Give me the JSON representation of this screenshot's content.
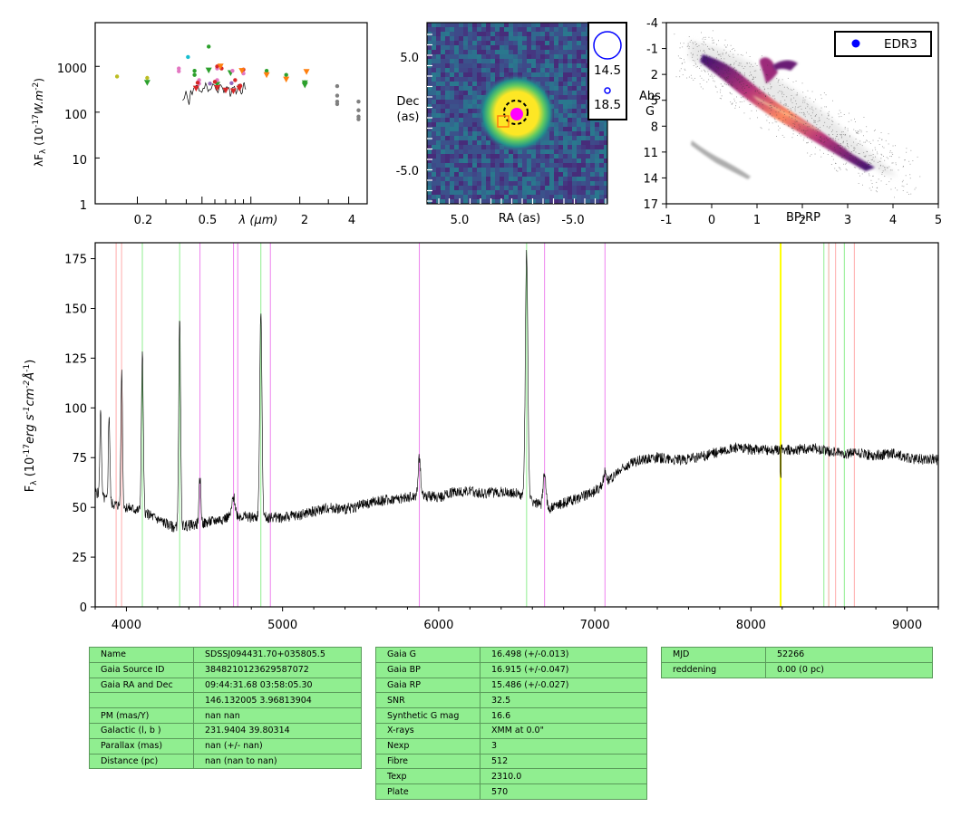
{
  "sed": {
    "ylabel": "λF_λ (10^-17 W.m^-2)",
    "xlabel": "λ (μm)",
    "ytick_labels": [
      "1000",
      "100",
      "10",
      "1"
    ],
    "xtick_labels": [
      "0.2",
      "0.5",
      "2",
      "4"
    ],
    "chart_data": {
      "type": "scatter",
      "xscale": "log",
      "yscale": "log",
      "xlim": [
        0.11,
        5.2
      ],
      "ylim": [
        1,
        9000
      ],
      "series": [
        {
          "color": "#bcbd22",
          "marker": "dot",
          "points": [
            [
              0.15,
              600
            ],
            [
              0.23,
              560
            ]
          ]
        },
        {
          "color": "#2ca02c",
          "marker": "tri-down",
          "points": [
            [
              0.23,
              440
            ],
            [
              0.55,
              820
            ],
            [
              0.62,
              400
            ],
            [
              0.75,
              720
            ],
            [
              2.15,
              430
            ],
            [
              2.15,
              390
            ]
          ]
        },
        {
          "color": "#2ca02c",
          "marker": "dot",
          "points": [
            [
              0.55,
              2700
            ],
            [
              0.45,
              800
            ],
            [
              0.45,
              650
            ],
            [
              1.25,
              800
            ],
            [
              1.65,
              650
            ],
            [
              2.15,
              450
            ]
          ]
        },
        {
          "color": "#17becf",
          "marker": "dot",
          "points": [
            [
              0.41,
              1600
            ]
          ]
        },
        {
          "color": "#e377c2",
          "marker": "dot",
          "points": [
            [
              0.36,
              900
            ],
            [
              0.36,
              780
            ],
            [
              0.48,
              500
            ],
            [
              0.48,
              420
            ],
            [
              0.62,
              900
            ],
            [
              0.62,
              500
            ],
            [
              0.77,
              800
            ],
            [
              0.9,
              700
            ]
          ]
        },
        {
          "color": "#d62728",
          "marker": "dot",
          "points": [
            [
              0.47,
              440
            ],
            [
              0.6,
              460
            ],
            [
              0.66,
              900
            ],
            [
              0.8,
              500
            ],
            [
              0.86,
              380
            ],
            [
              0.9,
              850
            ],
            [
              0.62,
              1000
            ]
          ]
        },
        {
          "color": "#d62728",
          "marker": "tri-down",
          "points": [
            [
              0.46,
              330
            ],
            [
              0.62,
              340
            ],
            [
              0.7,
              300
            ],
            [
              0.78,
              290
            ],
            [
              0.85,
              330
            ]
          ]
        },
        {
          "color": "#ff7f0e",
          "marker": "tri-down",
          "points": [
            [
              0.65,
              1000
            ],
            [
              0.88,
              800
            ],
            [
              1.25,
              650
            ],
            [
              1.65,
              520
            ],
            [
              2.2,
              760
            ]
          ]
        },
        {
          "color": "#9467bd",
          "marker": "dot",
          "points": [
            [
              0.56,
              420
            ],
            [
              0.76,
              430
            ]
          ]
        },
        {
          "color": "#7f7f7f",
          "marker": "dot",
          "points": [
            [
              3.4,
              370
            ],
            [
              3.4,
              230
            ],
            [
              3.4,
              170
            ],
            [
              3.4,
              150
            ],
            [
              4.6,
              170
            ],
            [
              4.6,
              110
            ],
            [
              4.6,
              80
            ],
            [
              4.6,
              70
            ]
          ]
        }
      ],
      "spectrum_color": "#000000"
    }
  },
  "image": {
    "ylabel_line1": "Dec",
    "ylabel_line2": "(as)",
    "xlabel": "RA (as)",
    "ytick_labels": [
      "5.0",
      "-5.0"
    ],
    "xtick_labels": [
      "5.0",
      "-5.0"
    ],
    "legend": [
      {
        "label": "14.5",
        "color": "#0000ff"
      },
      {
        "label": "18.5",
        "color": "#0000ff"
      }
    ],
    "chart_data": {
      "type": "heatmap",
      "colormap": "viridis",
      "xlim": [
        9.0,
        -9.0
      ],
      "ylim": [
        -9.0,
        9.0
      ],
      "source_center": [
        0.0,
        0.0
      ],
      "markers": [
        {
          "kind": "dashed-circle",
          "color": "#000000",
          "x": 0.1,
          "y": 0.2
        },
        {
          "kind": "dot",
          "color": "#ff00ff",
          "x": 0.0,
          "y": 0.1
        },
        {
          "kind": "square",
          "color": "#ff7f0e",
          "x": 1.3,
          "y": -0.6
        }
      ]
    }
  },
  "hrd": {
    "ylabel_line1": "Abs",
    "ylabel_line2": "G",
    "xlabel": "BP-RP",
    "ytick_labels": [
      "-4",
      "-1",
      "2",
      "5",
      "8",
      "11",
      "14",
      "17"
    ],
    "xtick_labels": [
      "-1",
      "0",
      "1",
      "2",
      "3",
      "4",
      "5"
    ],
    "legend_label": "EDR3",
    "legend_color": "#0000ff",
    "chart_data": {
      "type": "heatmap",
      "colormap": "inferno",
      "xlim": [
        -1,
        5
      ],
      "ylim": [
        17,
        -4
      ],
      "object_point": null
    }
  },
  "spectrum": {
    "ylabel": "F_λ (10^-17 erg s^-1 cm^-2 Å^-1)",
    "ytick_labels": [
      "175",
      "150",
      "125",
      "100",
      "75",
      "50",
      "25",
      "0"
    ],
    "xtick_labels": [
      "4000",
      "5000",
      "6000",
      "7000",
      "8000",
      "9000"
    ],
    "chart_data": {
      "type": "line",
      "xlim": [
        3800,
        9200
      ],
      "ylim": [
        0,
        183
      ],
      "xlabel": "",
      "ylabel": "F_λ",
      "continuum_points": [
        [
          3800,
          58
        ],
        [
          3850,
          55
        ],
        [
          3900,
          52
        ],
        [
          4000,
          50
        ],
        [
          4100,
          48
        ],
        [
          4200,
          44
        ],
        [
          4300,
          40
        ],
        [
          4400,
          41
        ],
        [
          4500,
          42
        ],
        [
          4600,
          44
        ],
        [
          4700,
          46
        ],
        [
          4800,
          45
        ],
        [
          4900,
          45
        ],
        [
          5000,
          45
        ],
        [
          5100,
          46
        ],
        [
          5200,
          48
        ],
        [
          5300,
          50
        ],
        [
          5400,
          49
        ],
        [
          5500,
          51
        ],
        [
          5600,
          53
        ],
        [
          5700,
          54
        ],
        [
          5800,
          55
        ],
        [
          5900,
          56
        ],
        [
          6000,
          55
        ],
        [
          6100,
          58
        ],
        [
          6200,
          58
        ],
        [
          6300,
          57
        ],
        [
          6400,
          58
        ],
        [
          6500,
          57
        ],
        [
          6600,
          53
        ],
        [
          6700,
          49
        ],
        [
          6800,
          52
        ],
        [
          6900,
          55
        ],
        [
          7000,
          58
        ],
        [
          7100,
          64
        ],
        [
          7200,
          71
        ],
        [
          7300,
          74
        ],
        [
          7400,
          75
        ],
        [
          7500,
          74
        ],
        [
          7600,
          74
        ],
        [
          7700,
          76
        ],
        [
          7800,
          78
        ],
        [
          7900,
          80
        ],
        [
          8000,
          79
        ],
        [
          8100,
          79
        ],
        [
          8200,
          79
        ],
        [
          8300,
          79
        ],
        [
          8400,
          80
        ],
        [
          8500,
          78
        ],
        [
          8600,
          77
        ],
        [
          8700,
          77
        ],
        [
          8800,
          76
        ],
        [
          8900,
          77
        ],
        [
          9000,
          75
        ],
        [
          9100,
          74
        ],
        [
          9200,
          74
        ]
      ],
      "emission_lines": [
        {
          "x": 3835,
          "peak": 100,
          "width": 5
        },
        {
          "x": 3889,
          "peak": 97,
          "width": 5
        },
        {
          "x": 3970,
          "peak": 119,
          "width": 5
        },
        {
          "x": 4102,
          "peak": 127,
          "width": 6
        },
        {
          "x": 4341,
          "peak": 144,
          "width": 6
        },
        {
          "x": 4471,
          "peak": 65,
          "width": 6
        },
        {
          "x": 4686,
          "peak": 55,
          "width": 10
        },
        {
          "x": 4861,
          "peak": 149,
          "width": 7
        },
        {
          "x": 5876,
          "peak": 75,
          "width": 8
        },
        {
          "x": 6563,
          "peak": 178,
          "width": 8
        },
        {
          "x": 6678,
          "peak": 68,
          "width": 9
        },
        {
          "x": 7065,
          "peak": 68,
          "width": 10
        }
      ],
      "ref_lines": [
        {
          "x": 3934,
          "color": "#ffaaaa"
        },
        {
          "x": 3969,
          "color": "#ffaaaa"
        },
        {
          "x": 4102,
          "color": "#90ee90"
        },
        {
          "x": 4341,
          "color": "#90ee90"
        },
        {
          "x": 4471,
          "color": "#ee82ee"
        },
        {
          "x": 4686,
          "color": "#ee82ee"
        },
        {
          "x": 4713,
          "color": "#ee82ee"
        },
        {
          "x": 4861,
          "color": "#90ee90"
        },
        {
          "x": 4922,
          "color": "#ee82ee"
        },
        {
          "x": 5876,
          "color": "#ee82ee"
        },
        {
          "x": 6563,
          "color": "#90ee90"
        },
        {
          "x": 6678,
          "color": "#ee82ee"
        },
        {
          "x": 7065,
          "color": "#ee82ee"
        },
        {
          "x": 8190,
          "color": "#ffff00"
        },
        {
          "x": 8498,
          "color": "#90ee90"
        },
        {
          "x": 8542,
          "color": "#ffaaaa"
        },
        {
          "x": 8498,
          "color": "#ffaaaa"
        },
        {
          "x": 8598,
          "color": "#90ee90"
        },
        {
          "x": 8662,
          "color": "#ffaaaa"
        },
        {
          "x": 8467,
          "color": "#90ee90"
        }
      ]
    }
  },
  "table1": [
    [
      "Name",
      "SDSSJ094431.70+035805.5"
    ],
    [
      "Gaia Source ID",
      "3848210123629587072"
    ],
    [
      "Gaia RA and Dec",
      "09:44:31.68    03:58:05.30"
    ],
    [
      "",
      "146.132005    3.96813904"
    ],
    [
      "PM (mas/Y)",
      "nan    nan"
    ],
    [
      "Galactic (l, b )",
      "231.9404    39.80314"
    ],
    [
      "Parallax (mas)",
      "nan (+/- nan)"
    ],
    [
      "Distance (pc)",
      "nan (nan to nan)"
    ]
  ],
  "table2": [
    [
      "Gaia G",
      "16.498 (+/-0.013)"
    ],
    [
      "Gaia BP",
      "16.915 (+/-0.047)"
    ],
    [
      "Gaia RP",
      "15.486 (+/-0.027)"
    ],
    [
      "SNR",
      "32.5"
    ],
    [
      "Synthetic G mag",
      "16.6"
    ],
    [
      "X-rays",
      "XMM at 0.0\""
    ],
    [
      "Nexp",
      "3"
    ],
    [
      "Fibre",
      "512"
    ],
    [
      "Texp",
      "2310.0"
    ],
    [
      "Plate",
      "570"
    ]
  ],
  "table3": [
    [
      "MJD",
      "52266"
    ],
    [
      "reddening",
      "0.00 (0 pc)"
    ]
  ]
}
